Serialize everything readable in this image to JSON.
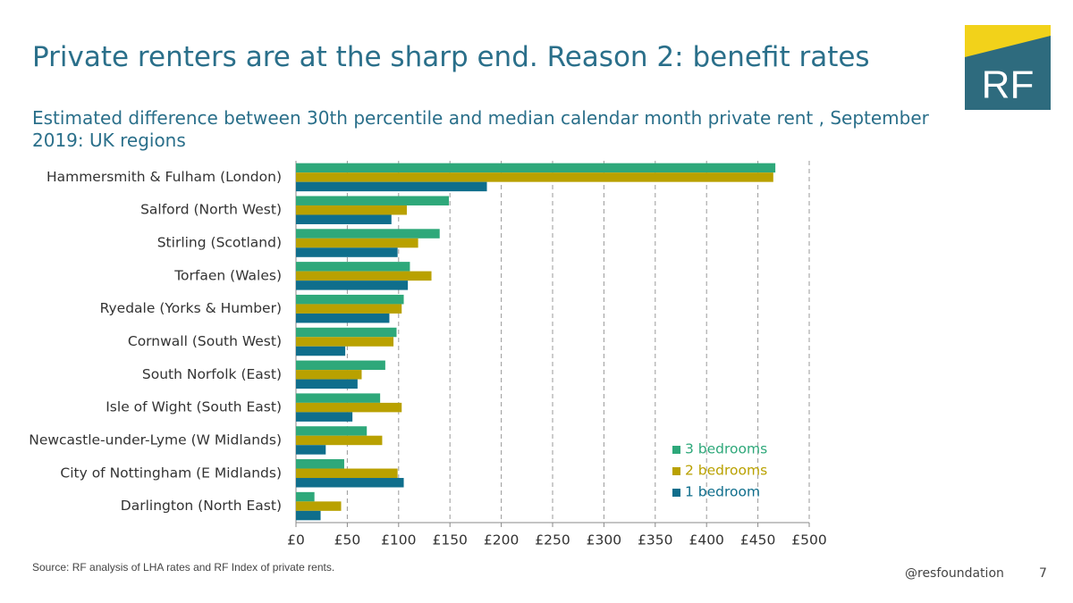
{
  "slide": {
    "title": "Private renters are at the sharp end. Reason 2: benefit rates",
    "subtitle": "Estimated difference between 30th percentile and median calendar month private rent , September 2019: UK regions",
    "source": "Source: RF analysis of LHA rates and RF Index of private rents.",
    "handle": "@resfoundation",
    "page_number": "7",
    "logo": "RF"
  },
  "chart_data": {
    "type": "hbar",
    "categories": [
      "Hammersmith &  Fulham (London)",
      "Salford (North West)",
      "Stirling (Scotland)",
      "Torfaen (Wales)",
      "Ryedale (Yorks & Humber)",
      "Cornwall (South West)",
      "South Norfolk (East)",
      "Isle of Wight (South East)",
      "Newcastle-under-Lyme (W Midlands)",
      "City of Nottingham (E Midlands)",
      "Darlington (North East)"
    ],
    "series": [
      {
        "name": "3 bedrooms",
        "color": "#2ea87a",
        "values": [
          467,
          149,
          140,
          111,
          105,
          98,
          87,
          82,
          69,
          47,
          18
        ]
      },
      {
        "name": "2 bedrooms",
        "color": "#b9a100",
        "values": [
          465,
          108,
          119,
          132,
          103,
          95,
          64,
          103,
          84,
          99,
          44
        ]
      },
      {
        "name": "1 bedroom",
        "color": "#0f6e8c",
        "values": [
          186,
          93,
          99,
          109,
          91,
          48,
          60,
          55,
          29,
          105,
          24
        ]
      }
    ],
    "xlim": [
      0,
      500
    ],
    "xticks": [
      {
        "value": 0,
        "label": "£0"
      },
      {
        "value": 50,
        "label": "£50"
      },
      {
        "value": 100,
        "label": "£100"
      },
      {
        "value": 150,
        "label": "£150"
      },
      {
        "value": 200,
        "label": "£200"
      },
      {
        "value": 250,
        "label": "£250"
      },
      {
        "value": 300,
        "label": "£300"
      },
      {
        "value": 350,
        "label": "£350"
      },
      {
        "value": 400,
        "label": "£400"
      },
      {
        "value": 450,
        "label": "£450"
      },
      {
        "value": 500,
        "label": "£500"
      }
    ],
    "grid": true,
    "legend": "lower right"
  }
}
